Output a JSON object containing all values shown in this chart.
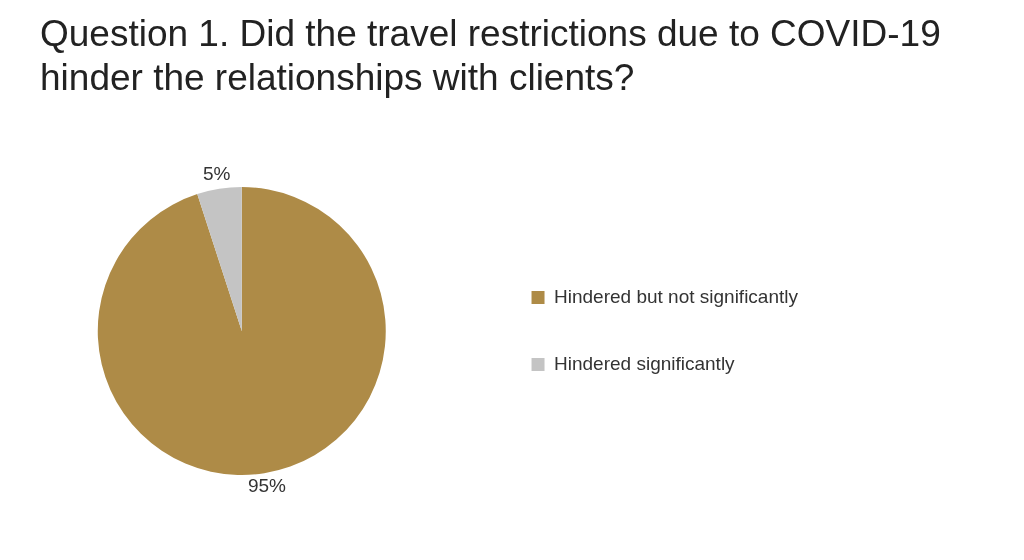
{
  "chart_data": {
    "type": "pie",
    "title": "Question 1. Did the travel restrictions due to COVID-19 hinder the relationships with clients?",
    "categories": [
      "Hindered but not significantly",
      "Hindered significantly"
    ],
    "values": [
      95,
      5
    ],
    "colors": [
      "#ae8b47",
      "#c4c4c4"
    ],
    "value_labels": [
      "95%",
      "5%"
    ],
    "legend": "right"
  }
}
